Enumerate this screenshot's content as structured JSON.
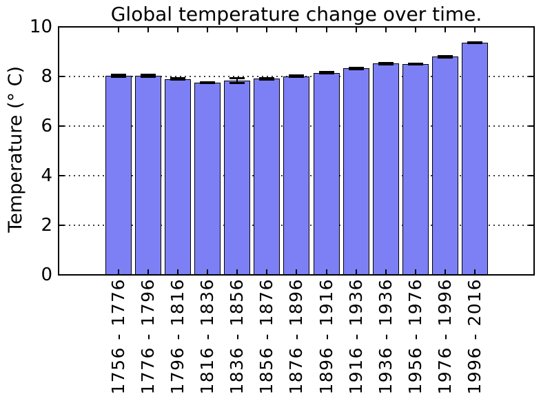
{
  "title": "Global temperature change over time.",
  "chart_data": {
    "type": "bar",
    "title": "Global temperature change over time.",
    "xlabel": "",
    "ylabel": "Temperature (° C)",
    "categories": [
      "1756 - 1776",
      "1776 - 1796",
      "1796 - 1816",
      "1816 - 1836",
      "1836 - 1856",
      "1856 - 1876",
      "1876 - 1896",
      "1896 - 1916",
      "1916 - 1936",
      "1936 - 1936",
      "1956 - 1976",
      "1976 - 1996",
      "1996 - 2016"
    ],
    "values": [
      8.02,
      8.03,
      7.9,
      7.76,
      7.83,
      7.91,
      8.01,
      8.15,
      8.32,
      8.52,
      8.5,
      8.8,
      9.37
    ],
    "errors": [
      0.06,
      0.06,
      0.04,
      0.03,
      0.11,
      0.04,
      0.04,
      0.04,
      0.05,
      0.04,
      0.03,
      0.04,
      0.03
    ],
    "ylim": [
      0,
      10
    ],
    "yticks": [
      0,
      2,
      4,
      6,
      8,
      10
    ],
    "grid_yticks": [
      2,
      4,
      6,
      8
    ],
    "grid_style": "dotted horizontal",
    "legend": "none",
    "bar_color": "#7d80f5",
    "bar_edge_color": "#000000",
    "error_color": "#000000",
    "axis_color": "#000000",
    "background": "#ffffff"
  }
}
